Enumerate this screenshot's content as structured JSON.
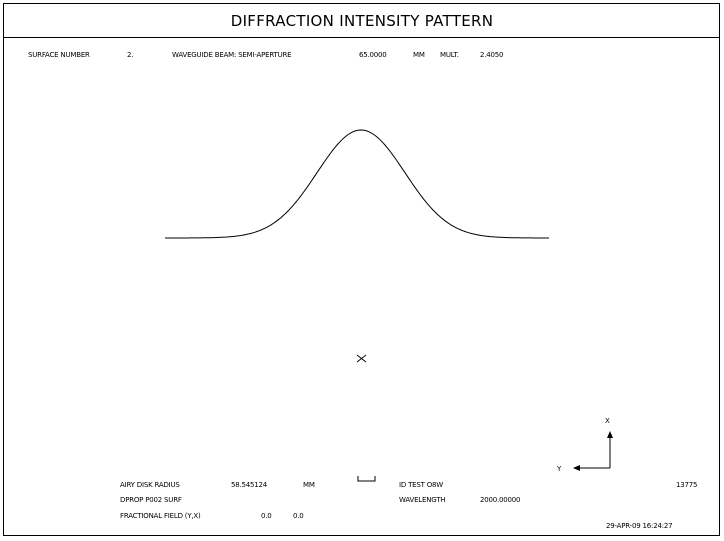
{
  "title": "DIFFRACTION INTENSITY PATTERN",
  "header": {
    "surface_label": "SURFACE NUMBER",
    "surface_value": "2.",
    "semi_aperture_label": "WAVEGUIDE BEAM: SEMI-APERTURE",
    "semi_aperture_value": "65.0000",
    "semi_aperture_unit": "MM",
    "mult_label": "MULT.",
    "mult_value": "2.4050"
  },
  "footer": {
    "airy_label": "AIRY DISK RADIUS",
    "airy_value": "58.545124",
    "airy_unit": "MM",
    "id_label": "ID TEST O8W",
    "id_value": "13775",
    "dprop_label": "DPROP P002 SURF",
    "wavelength_label": "WAVELENGTH",
    "wavelength_value": "2000.00000",
    "field_label": "FRACTIONAL FIELD (Y,X)",
    "field_y": "0.0",
    "field_x": "0.0",
    "date": "29-APR-09 16:24:27"
  },
  "axes": {
    "x": "X",
    "y": "Y"
  },
  "style": {
    "line_color": "#000000",
    "background": "#ffffff"
  }
}
